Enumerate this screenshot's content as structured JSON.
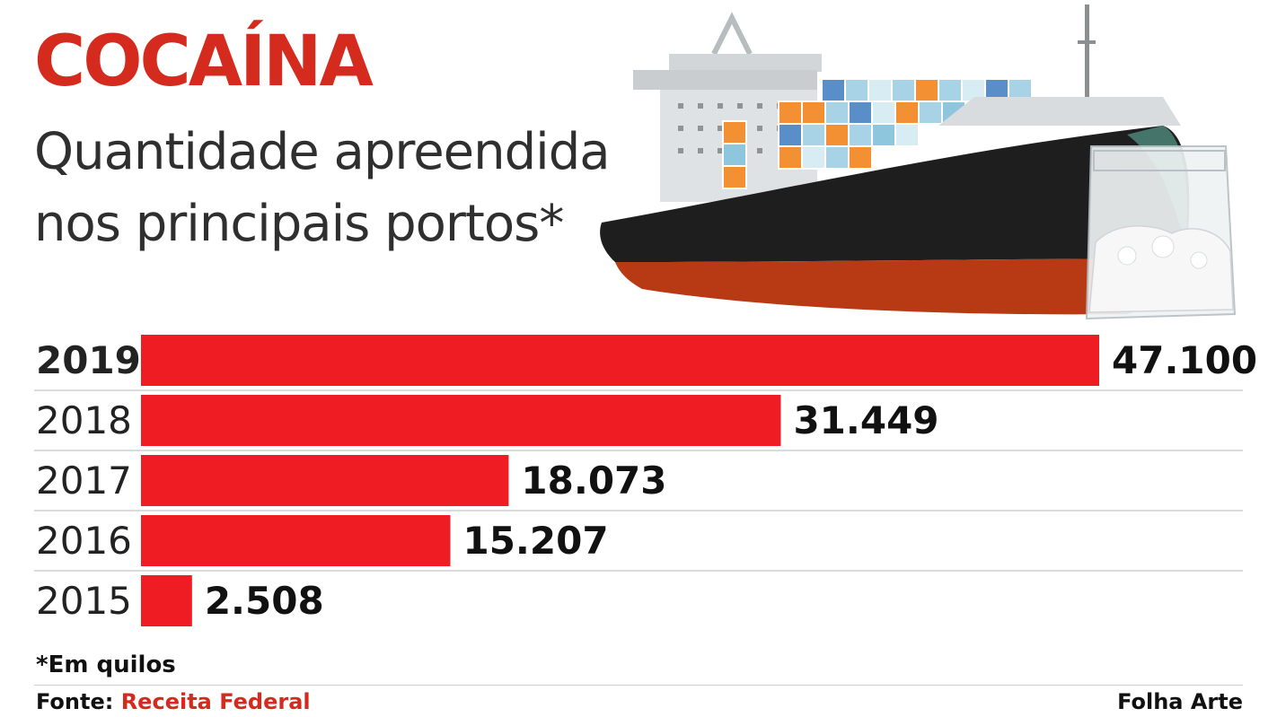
{
  "header": {
    "title": "COCAÍNA",
    "subtitle_line1": "Quantidade apreendida",
    "subtitle_line2": "nos principais portos*"
  },
  "chart_data": {
    "type": "bar",
    "orientation": "horizontal",
    "categories": [
      "2019",
      "2018",
      "2017",
      "2016",
      "2015"
    ],
    "values": [
      47100,
      31449,
      18073,
      15207,
      2508
    ],
    "value_labels": [
      "47.100",
      "31.449",
      "18.073",
      "15.207",
      "2.508"
    ],
    "bar_color": "#ef1c24",
    "grid": false,
    "legend": "none"
  },
  "footnote": "*Em quilos",
  "source": {
    "label": "Fonte:",
    "name": "Receita Federal"
  },
  "credit": "Folha Arte",
  "colors": {
    "title": "#d52b1e",
    "bar": "#ef1c24",
    "hull": "#1e1e1e",
    "hull_bottom": "#b83a14"
  },
  "illustration": {
    "ship_icon": "cargo-ship-icon",
    "bag_icon": "cocaine-bag-icon"
  }
}
